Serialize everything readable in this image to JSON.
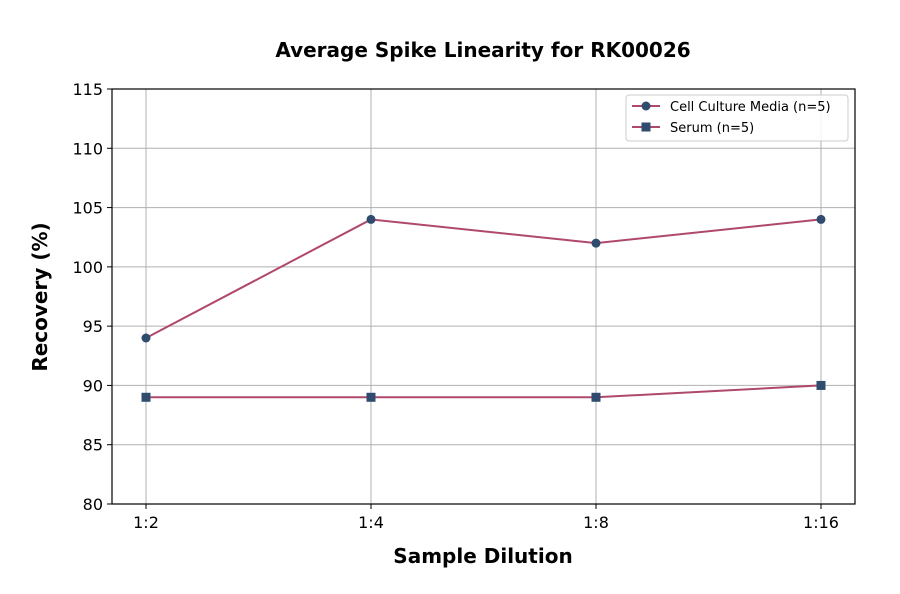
{
  "chart_data": {
    "type": "line",
    "title": "Average Spike Linearity for RK00026",
    "xlabel": "Sample Dilution",
    "ylabel": "Recovery (%)",
    "categories": [
      "1:2",
      "1:4",
      "1:8",
      "1:16"
    ],
    "ylim": [
      80,
      115
    ],
    "yticks": [
      "80",
      "85",
      "90",
      "95",
      "100",
      "105",
      "110",
      "115"
    ],
    "grid": true,
    "legend_position": "top-right",
    "line_color": "#b0486e",
    "marker_color": "#2f4b6e",
    "series": [
      {
        "name": "Cell Culture Media (n=5)",
        "marker": "circle",
        "values": [
          94,
          104,
          102,
          104
        ]
      },
      {
        "name": "Serum (n=5)",
        "marker": "square",
        "values": [
          89,
          89,
          89,
          90
        ]
      }
    ]
  }
}
